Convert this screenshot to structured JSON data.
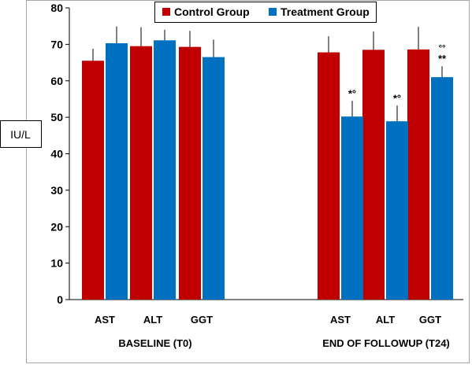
{
  "chart_data": {
    "type": "bar",
    "ylabel": "IU/L",
    "ylim": [
      0,
      80
    ],
    "yticks": [
      0,
      10,
      20,
      30,
      40,
      50,
      60,
      70,
      80
    ],
    "grid": false,
    "legend_position": "top-right",
    "groups": [
      {
        "label": "BASELINE (T0)",
        "categories": [
          "AST",
          "ALT",
          "GGT"
        ]
      },
      {
        "label": "END OF FOLLOWUP (T24)",
        "categories": [
          "AST",
          "ALT",
          "GGT"
        ]
      }
    ],
    "series": [
      {
        "name": "Control Group",
        "color": "#c00000",
        "values": [
          65.5,
          69.5,
          69.3,
          67.8,
          68.5,
          68.6
        ],
        "error_upper": [
          3.3,
          5.2,
          4.4,
          4.4,
          5.0,
          6.2
        ],
        "annotations": [
          "",
          "",
          "",
          "",
          "",
          ""
        ]
      },
      {
        "name": "Treatment Group",
        "color": "#0070c0",
        "values": [
          70.3,
          71.1,
          66.5,
          50.2,
          48.9,
          61.0
        ],
        "error_upper": [
          4.6,
          2.9,
          4.8,
          4.3,
          4.3,
          3.0
        ],
        "annotations": [
          "",
          "",
          "",
          "*°",
          "*°",
          "**"
        ],
        "annotations_top": [
          "",
          "",
          "",
          "",
          "",
          "°°"
        ]
      }
    ]
  }
}
